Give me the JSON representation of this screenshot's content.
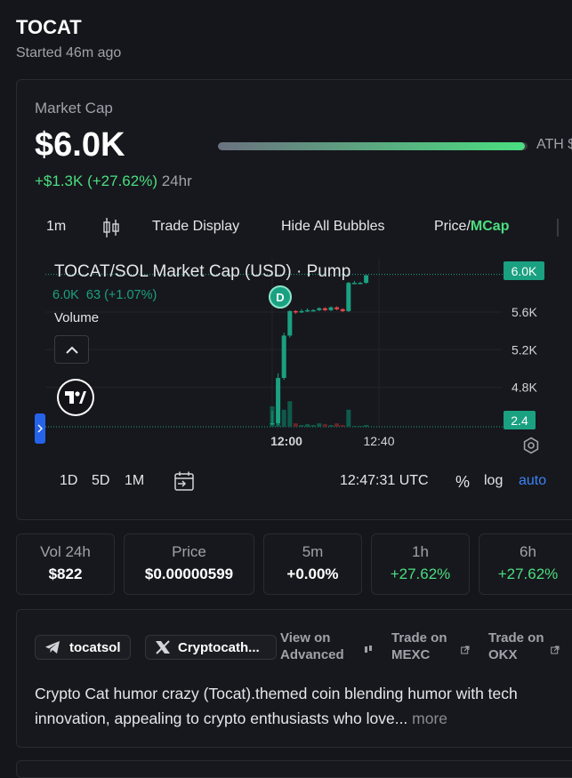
{
  "token": {
    "title": "TOCAT",
    "started": "Started 46m ago"
  },
  "market": {
    "label": "Market Cap",
    "value": "$6.0K",
    "change": "+$1.3K (+27.62%)",
    "change_period": "24hr",
    "ath_label": "ATH $",
    "ath_progress": 0.99
  },
  "toolbar": {
    "interval": "1m",
    "trade_display": "Trade Display",
    "hide_bubbles": "Hide All Bubbles",
    "price_label": "Price/",
    "mcap_label": "MCap"
  },
  "chart_header": {
    "title": "TOCAT/SOL Market Cap (USD) · Pump",
    "value": "6.0K",
    "delta": "63 (+1.07%)",
    "volume_label": "Volume"
  },
  "chart_data": {
    "type": "candlestick",
    "y_ticks": [
      "5.6K",
      "5.2K",
      "4.8K"
    ],
    "y_range": [
      4.4,
      6.1
    ],
    "x_ticks": [
      "12:00",
      "12:40"
    ],
    "last_price_label": "6.0K",
    "last_price": 6.0,
    "volume_label": "2.4",
    "marker": "D",
    "candles": [
      {
        "t": 0,
        "o": 4.42,
        "h": 4.55,
        "l": 4.4,
        "c": 4.42
      },
      {
        "t": 1,
        "o": 4.42,
        "h": 4.95,
        "l": 4.4,
        "c": 4.9
      },
      {
        "t": 2,
        "o": 4.9,
        "h": 5.38,
        "l": 4.88,
        "c": 5.35
      },
      {
        "t": 3,
        "o": 5.35,
        "h": 5.62,
        "l": 5.33,
        "c": 5.61
      },
      {
        "t": 4,
        "o": 5.61,
        "h": 5.62,
        "l": 5.58,
        "c": 5.6
      },
      {
        "t": 5,
        "o": 5.6,
        "h": 5.63,
        "l": 5.59,
        "c": 5.61
      },
      {
        "t": 6,
        "o": 5.61,
        "h": 5.64,
        "l": 5.6,
        "c": 5.62
      },
      {
        "t": 7,
        "o": 5.62,
        "h": 5.63,
        "l": 5.61,
        "c": 5.62
      },
      {
        "t": 8,
        "o": 5.62,
        "h": 5.65,
        "l": 5.61,
        "c": 5.64
      },
      {
        "t": 9,
        "o": 5.64,
        "h": 5.65,
        "l": 5.61,
        "c": 5.62
      },
      {
        "t": 10,
        "o": 5.62,
        "h": 5.66,
        "l": 5.61,
        "c": 5.65
      },
      {
        "t": 11,
        "o": 5.65,
        "h": 5.66,
        "l": 5.62,
        "c": 5.63
      },
      {
        "t": 12,
        "o": 5.63,
        "h": 5.64,
        "l": 5.6,
        "c": 5.61
      },
      {
        "t": 13,
        "o": 5.61,
        "h": 5.92,
        "l": 5.6,
        "c": 5.91
      },
      {
        "t": 14,
        "o": 5.91,
        "h": 5.93,
        "l": 5.9,
        "c": 5.91
      },
      {
        "t": 15,
        "o": 5.91,
        "h": 5.92,
        "l": 5.9,
        "c": 5.91
      },
      {
        "t": 16,
        "o": 5.91,
        "h": 6.0,
        "l": 5.9,
        "c": 5.99
      }
    ],
    "volumes": [
      1.2,
      2.4,
      1.0,
      1.5,
      0.2,
      0.1,
      0.15,
      0.1,
      0.2,
      0.15,
      0.1,
      0.2,
      0.1,
      1.0,
      0.05,
      0.05,
      0.1
    ]
  },
  "range": {
    "d1": "1D",
    "d5": "5D",
    "m1": "1M",
    "time": "12:47:31 UTC",
    "percent": "%",
    "log": "log",
    "auto": "auto"
  },
  "stats": [
    {
      "label": "Vol 24h",
      "value": "$822",
      "positive": false
    },
    {
      "label": "Price",
      "value": "$0.00000599",
      "positive": false
    },
    {
      "label": "5m",
      "value": "+0.00%",
      "positive": false
    },
    {
      "label": "1h",
      "value": "+27.62%",
      "positive": true
    },
    {
      "label": "6h",
      "value": "+27.62%",
      "positive": true
    }
  ],
  "socials": {
    "telegram": "tocatsol",
    "x": "Cryptocath...",
    "advanced_1": "View on",
    "advanced_2": "Advanced",
    "mexc_1": "Trade on",
    "mexc_2": "MEXC",
    "okx_1": "Trade on",
    "okx_2": "OKX"
  },
  "description": {
    "text": "Crypto Cat humor crazy (Tocat).themed coin blending humor with tech innovation, appealing to crypto enthusiasts who love...",
    "more": "more"
  },
  "colors": {
    "up": "#1aa181",
    "down": "#e5484d",
    "accent_green": "#4ade80",
    "accent_blue": "#3b82f6",
    "tag_bg": "#1aa181"
  }
}
